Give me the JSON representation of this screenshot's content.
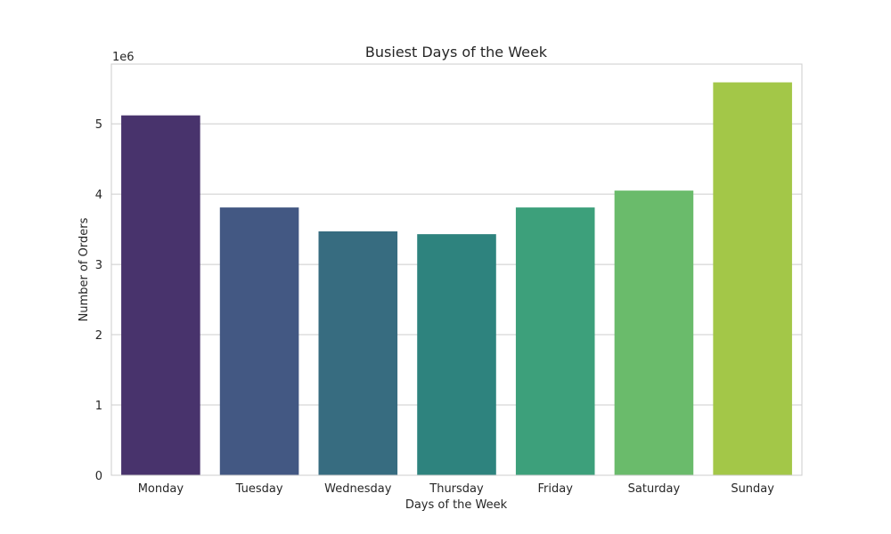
{
  "chart_data": {
    "type": "bar",
    "title": "Busiest Days of the Week",
    "xlabel": "Days of the Week",
    "ylabel": "Number of Orders",
    "y_multiplier_label": "1e6",
    "categories": [
      "Monday",
      "Tuesday",
      "Wednesday",
      "Thursday",
      "Friday",
      "Saturday",
      "Sunday"
    ],
    "values": [
      5120000,
      3810000,
      3470000,
      3430000,
      3810000,
      4050000,
      5590000
    ],
    "colors": [
      "#48336c",
      "#435883",
      "#376c80",
      "#2e837e",
      "#3da07b",
      "#6abb6b",
      "#a3c748"
    ],
    "ylim": [
      0,
      5850000
    ],
    "yticks": [
      0,
      1000000,
      2000000,
      3000000,
      4000000,
      5000000
    ],
    "ytick_labels": [
      "0",
      "1",
      "2",
      "3",
      "4",
      "5"
    ],
    "grid": "horizontal",
    "legend": "none"
  }
}
